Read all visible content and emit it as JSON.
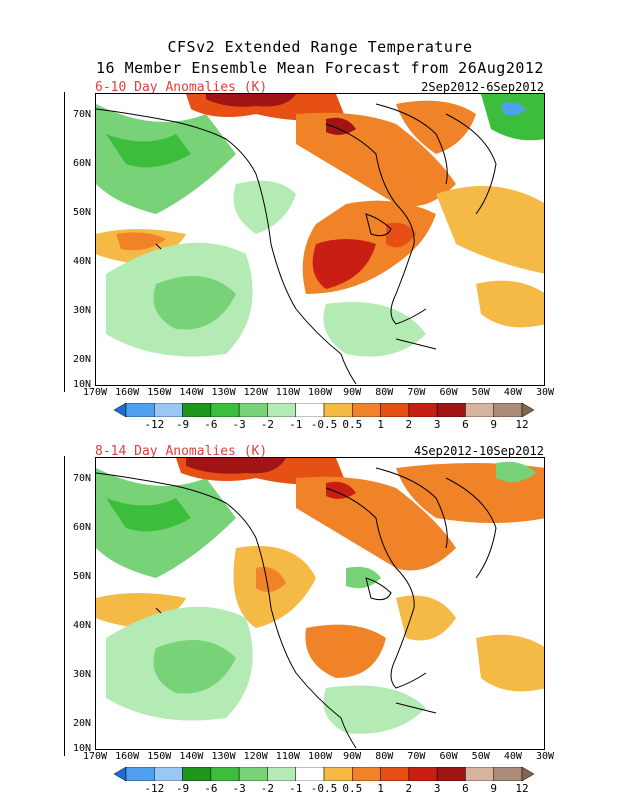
{
  "header": {
    "title_line1": "CFSv2 Extended Range Temperature",
    "title_line2": "16 Member Ensemble Mean Forecast from 26Aug2012"
  },
  "panels": [
    {
      "title": "6-10 Day Anomalies (K)",
      "date_range": "2Sep2012-6Sep2012"
    },
    {
      "title": "8-14 Day Anomalies (K)",
      "date_range": "4Sep2012-10Sep2012"
    }
  ],
  "lat_labels": [
    "70N",
    "60N",
    "50N",
    "40N",
    "30N",
    "20N",
    "10N"
  ],
  "lon_labels": [
    "170W",
    "160W",
    "150W",
    "140W",
    "130W",
    "120W",
    "110W",
    "100W",
    "90W",
    "80W",
    "70W",
    "60W",
    "50W",
    "40W",
    "30W"
  ],
  "colorbar": {
    "labels": [
      "-12",
      "-9",
      "-6",
      "-3",
      "-2",
      "-1",
      "-0.5",
      "0.5",
      "1",
      "2",
      "3",
      "6",
      "9",
      "12"
    ],
    "colors": [
      "#1e6ed2",
      "#4fa0f0",
      "#9ac8f5",
      "#1e961e",
      "#3cbe3c",
      "#78d278",
      "#b4ebb4",
      "#ffffff",
      "#f5b946",
      "#f08228",
      "#e65014",
      "#c81e14",
      "#a01414",
      "#d7b4a0",
      "#aa8c78",
      "#826450"
    ]
  }
}
